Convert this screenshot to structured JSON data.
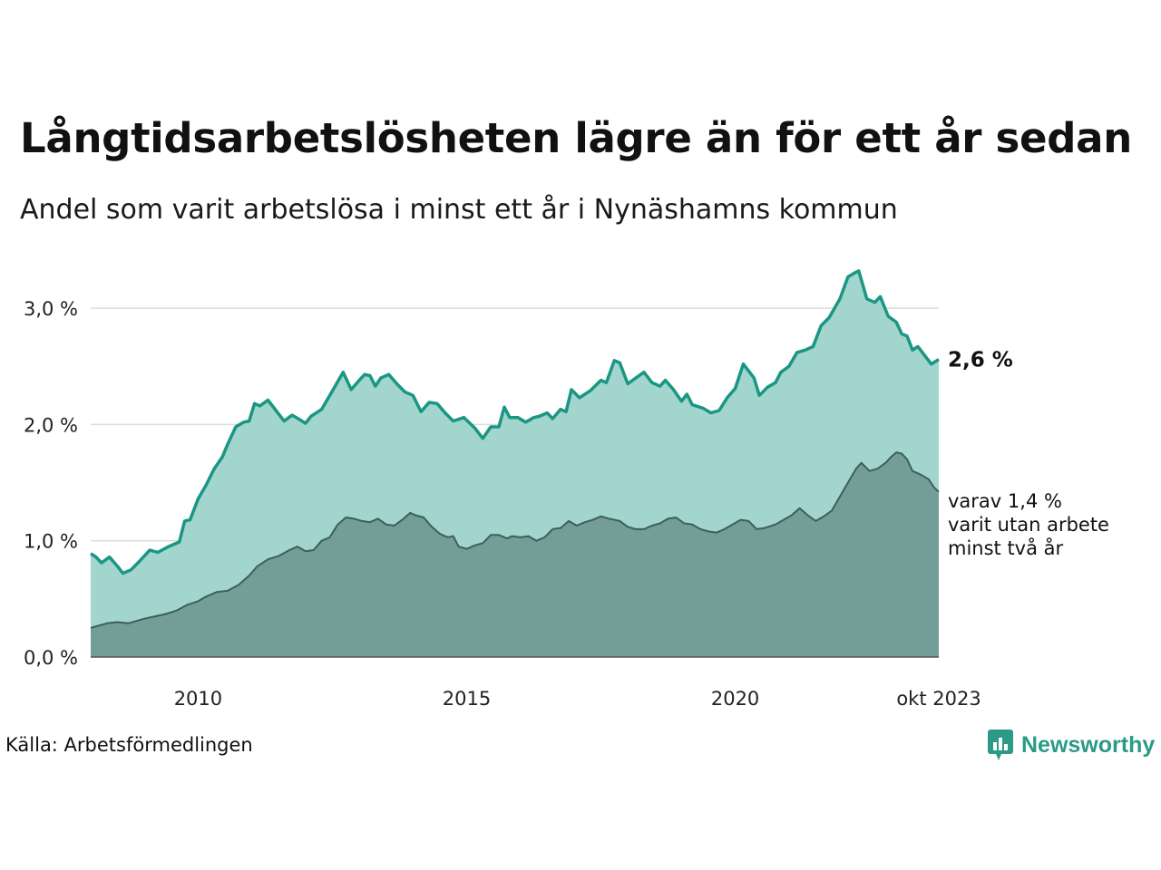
{
  "title": "Långtidsarbetslösheten lägre än för ett år sedan",
  "subtitle": "Andel som varit arbetslösa i minst ett år i Nynäshamns kommun",
  "source": "Källa: Arbetsförmedlingen",
  "brand": {
    "name": "Newsworthy",
    "icon": "newsworthy-logo-icon",
    "color": "#2b9a86"
  },
  "colors": {
    "upper_line": "#1a9683",
    "upper_fill": "#a3d5cf",
    "lower_line": "#3d5f58",
    "lower_fill": "#729e97",
    "grid": "#dcdcdc"
  },
  "chart_data": {
    "type": "area",
    "x_range": [
      2008.0,
      2023.79
    ],
    "ylim": [
      0,
      3.3
    ],
    "y_ticks": [
      {
        "value": 0,
        "label": "0,0 %"
      },
      {
        "value": 1,
        "label": "1,0 %"
      },
      {
        "value": 2,
        "label": "2,0 %"
      },
      {
        "value": 3,
        "label": "3,0 %"
      }
    ],
    "x_ticks": [
      {
        "value": 2010,
        "label": "2010"
      },
      {
        "value": 2015,
        "label": "2015"
      },
      {
        "value": 2020,
        "label": "2020"
      },
      {
        "value": 2023.79,
        "label": "okt 2023"
      }
    ],
    "grid": true,
    "series": [
      {
        "name": "Varit arbetslösa i minst ett år",
        "end_label": "2,6 %",
        "points": [
          [
            2008.0,
            0.89
          ],
          [
            2008.1,
            0.86
          ],
          [
            2008.2,
            0.81
          ],
          [
            2008.35,
            0.86
          ],
          [
            2008.5,
            0.78
          ],
          [
            2008.6,
            0.72
          ],
          [
            2008.75,
            0.75
          ],
          [
            2008.9,
            0.82
          ],
          [
            2009.1,
            0.92
          ],
          [
            2009.25,
            0.9
          ],
          [
            2009.45,
            0.95
          ],
          [
            2009.65,
            0.99
          ],
          [
            2009.75,
            1.17
          ],
          [
            2009.85,
            1.18
          ],
          [
            2010.0,
            1.36
          ],
          [
            2010.15,
            1.48
          ],
          [
            2010.3,
            1.62
          ],
          [
            2010.45,
            1.72
          ],
          [
            2010.55,
            1.83
          ],
          [
            2010.7,
            1.98
          ],
          [
            2010.85,
            2.02
          ],
          [
            2010.95,
            2.03
          ],
          [
            2011.05,
            2.18
          ],
          [
            2011.15,
            2.16
          ],
          [
            2011.3,
            2.21
          ],
          [
            2011.45,
            2.12
          ],
          [
            2011.6,
            2.03
          ],
          [
            2011.75,
            2.08
          ],
          [
            2011.9,
            2.04
          ],
          [
            2012.0,
            2.01
          ],
          [
            2012.1,
            2.07
          ],
          [
            2012.3,
            2.13
          ],
          [
            2012.5,
            2.29
          ],
          [
            2012.7,
            2.45
          ],
          [
            2012.85,
            2.3
          ],
          [
            2013.0,
            2.38
          ],
          [
            2013.1,
            2.43
          ],
          [
            2013.2,
            2.42
          ],
          [
            2013.3,
            2.33
          ],
          [
            2013.4,
            2.4
          ],
          [
            2013.55,
            2.43
          ],
          [
            2013.7,
            2.35
          ],
          [
            2013.85,
            2.28
          ],
          [
            2014.0,
            2.25
          ],
          [
            2014.15,
            2.11
          ],
          [
            2014.3,
            2.19
          ],
          [
            2014.45,
            2.18
          ],
          [
            2014.6,
            2.1
          ],
          [
            2014.75,
            2.03
          ],
          [
            2014.95,
            2.06
          ],
          [
            2015.15,
            1.97
          ],
          [
            2015.3,
            1.88
          ],
          [
            2015.45,
            1.98
          ],
          [
            2015.6,
            1.98
          ],
          [
            2015.7,
            2.15
          ],
          [
            2015.8,
            2.06
          ],
          [
            2015.95,
            2.06
          ],
          [
            2016.1,
            2.02
          ],
          [
            2016.25,
            2.06
          ],
          [
            2016.35,
            2.07
          ],
          [
            2016.5,
            2.1
          ],
          [
            2016.6,
            2.05
          ],
          [
            2016.75,
            2.13
          ],
          [
            2016.85,
            2.11
          ],
          [
            2016.95,
            2.3
          ],
          [
            2017.1,
            2.23
          ],
          [
            2017.3,
            2.29
          ],
          [
            2017.5,
            2.38
          ],
          [
            2017.6,
            2.36
          ],
          [
            2017.75,
            2.55
          ],
          [
            2017.85,
            2.53
          ],
          [
            2018.0,
            2.35
          ],
          [
            2018.15,
            2.4
          ],
          [
            2018.3,
            2.45
          ],
          [
            2018.45,
            2.36
          ],
          [
            2018.6,
            2.33
          ],
          [
            2018.7,
            2.38
          ],
          [
            2018.85,
            2.3
          ],
          [
            2019.0,
            2.2
          ],
          [
            2019.1,
            2.26
          ],
          [
            2019.2,
            2.17
          ],
          [
            2019.4,
            2.14
          ],
          [
            2019.55,
            2.1
          ],
          [
            2019.7,
            2.12
          ],
          [
            2019.85,
            2.23
          ],
          [
            2020.0,
            2.31
          ],
          [
            2020.15,
            2.52
          ],
          [
            2020.35,
            2.4
          ],
          [
            2020.45,
            2.25
          ],
          [
            2020.6,
            2.32
          ],
          [
            2020.75,
            2.36
          ],
          [
            2020.85,
            2.45
          ],
          [
            2021.0,
            2.5
          ],
          [
            2021.15,
            2.62
          ],
          [
            2021.3,
            2.64
          ],
          [
            2021.45,
            2.67
          ],
          [
            2021.6,
            2.85
          ],
          [
            2021.75,
            2.92
          ],
          [
            2021.95,
            3.08
          ],
          [
            2022.1,
            3.27
          ],
          [
            2022.25,
            3.31
          ],
          [
            2022.3,
            3.32
          ],
          [
            2022.45,
            3.08
          ],
          [
            2022.6,
            3.05
          ],
          [
            2022.7,
            3.1
          ],
          [
            2022.85,
            2.93
          ],
          [
            2023.0,
            2.88
          ],
          [
            2023.1,
            2.78
          ],
          [
            2023.2,
            2.76
          ],
          [
            2023.3,
            2.64
          ],
          [
            2023.4,
            2.67
          ],
          [
            2023.55,
            2.58
          ],
          [
            2023.65,
            2.52
          ],
          [
            2023.79,
            2.56
          ]
        ]
      },
      {
        "name": "varav varit utan arbete minst två år",
        "end_label": "varav 1,4 %\nvarit utan arbete\nminst två år",
        "points": [
          [
            2008.0,
            0.25
          ],
          [
            2008.15,
            0.27
          ],
          [
            2008.3,
            0.29
          ],
          [
            2008.5,
            0.3
          ],
          [
            2008.7,
            0.29
          ],
          [
            2008.85,
            0.31
          ],
          [
            2009.0,
            0.33
          ],
          [
            2009.2,
            0.35
          ],
          [
            2009.4,
            0.37
          ],
          [
            2009.6,
            0.4
          ],
          [
            2009.8,
            0.45
          ],
          [
            2010.0,
            0.48
          ],
          [
            2010.15,
            0.52
          ],
          [
            2010.35,
            0.56
          ],
          [
            2010.55,
            0.57
          ],
          [
            2010.75,
            0.62
          ],
          [
            2010.95,
            0.7
          ],
          [
            2011.1,
            0.78
          ],
          [
            2011.3,
            0.84
          ],
          [
            2011.5,
            0.87
          ],
          [
            2011.7,
            0.92
          ],
          [
            2011.85,
            0.95
          ],
          [
            2012.0,
            0.91
          ],
          [
            2012.15,
            0.92
          ],
          [
            2012.3,
            1.0
          ],
          [
            2012.45,
            1.03
          ],
          [
            2012.6,
            1.14
          ],
          [
            2012.75,
            1.2
          ],
          [
            2012.9,
            1.19
          ],
          [
            2013.05,
            1.17
          ],
          [
            2013.2,
            1.16
          ],
          [
            2013.35,
            1.19
          ],
          [
            2013.5,
            1.14
          ],
          [
            2013.65,
            1.13
          ],
          [
            2013.8,
            1.18
          ],
          [
            2013.95,
            1.24
          ],
          [
            2014.05,
            1.22
          ],
          [
            2014.2,
            1.2
          ],
          [
            2014.35,
            1.12
          ],
          [
            2014.5,
            1.06
          ],
          [
            2014.65,
            1.03
          ],
          [
            2014.75,
            1.04
          ],
          [
            2014.85,
            0.95
          ],
          [
            2015.0,
            0.93
          ],
          [
            2015.15,
            0.96
          ],
          [
            2015.3,
            0.98
          ],
          [
            2015.45,
            1.05
          ],
          [
            2015.6,
            1.05
          ],
          [
            2015.75,
            1.02
          ],
          [
            2015.85,
            1.04
          ],
          [
            2016.0,
            1.03
          ],
          [
            2016.15,
            1.04
          ],
          [
            2016.3,
            1.0
          ],
          [
            2016.45,
            1.03
          ],
          [
            2016.6,
            1.1
          ],
          [
            2016.75,
            1.11
          ],
          [
            2016.9,
            1.17
          ],
          [
            2017.05,
            1.13
          ],
          [
            2017.2,
            1.16
          ],
          [
            2017.35,
            1.18
          ],
          [
            2017.5,
            1.21
          ],
          [
            2017.65,
            1.19
          ],
          [
            2017.85,
            1.17
          ],
          [
            2018.0,
            1.12
          ],
          [
            2018.15,
            1.1
          ],
          [
            2018.3,
            1.1
          ],
          [
            2018.45,
            1.13
          ],
          [
            2018.6,
            1.15
          ],
          [
            2018.75,
            1.19
          ],
          [
            2018.9,
            1.2
          ],
          [
            2019.05,
            1.15
          ],
          [
            2019.2,
            1.14
          ],
          [
            2019.35,
            1.1
          ],
          [
            2019.5,
            1.08
          ],
          [
            2019.65,
            1.07
          ],
          [
            2019.8,
            1.1
          ],
          [
            2019.95,
            1.14
          ],
          [
            2020.1,
            1.18
          ],
          [
            2020.25,
            1.17
          ],
          [
            2020.4,
            1.1
          ],
          [
            2020.55,
            1.11
          ],
          [
            2020.75,
            1.14
          ],
          [
            2020.9,
            1.18
          ],
          [
            2021.05,
            1.22
          ],
          [
            2021.2,
            1.28
          ],
          [
            2021.35,
            1.22
          ],
          [
            2021.5,
            1.17
          ],
          [
            2021.65,
            1.21
          ],
          [
            2021.8,
            1.26
          ],
          [
            2021.95,
            1.38
          ],
          [
            2022.1,
            1.5
          ],
          [
            2022.25,
            1.62
          ],
          [
            2022.35,
            1.67
          ],
          [
            2022.5,
            1.6
          ],
          [
            2022.65,
            1.62
          ],
          [
            2022.8,
            1.67
          ],
          [
            2022.9,
            1.72
          ],
          [
            2023.0,
            1.76
          ],
          [
            2023.1,
            1.75
          ],
          [
            2023.2,
            1.7
          ],
          [
            2023.3,
            1.6
          ],
          [
            2023.45,
            1.57
          ],
          [
            2023.6,
            1.53
          ],
          [
            2023.7,
            1.46
          ],
          [
            2023.79,
            1.42
          ]
        ]
      }
    ]
  }
}
